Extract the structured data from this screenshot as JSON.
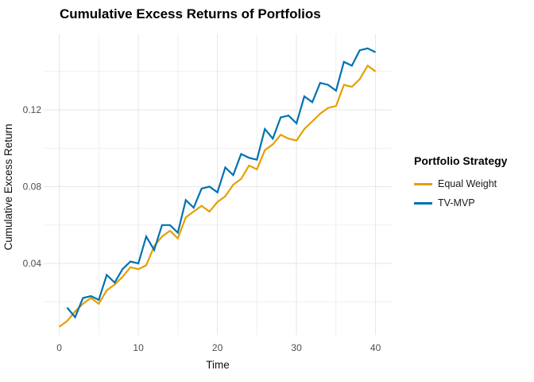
{
  "title": "Cumulative Excess Returns of Portfolios",
  "legend": {
    "title": "Portfolio Strategy",
    "entries": [
      {
        "label": "Equal Weight",
        "color": "#E69F00"
      },
      {
        "label": "TV-MVP",
        "color": "#0072B2"
      }
    ]
  },
  "colors": {
    "grid_major": "#e6e6e6",
    "grid_minor": "#efefef",
    "tick_label": "#4d4d4d",
    "background": "#ffffff"
  },
  "chart_data": {
    "type": "line",
    "title": "Cumulative Excess Returns of Portfolios",
    "xlabel": "Time",
    "ylabel": "Cumulative Excess Return",
    "xlim": [
      -2,
      42
    ],
    "ylim": [
      0,
      0.16
    ],
    "grid": true,
    "legend_position": "right",
    "x_ticks": [
      {
        "v": 0,
        "label": "0"
      },
      {
        "v": 10,
        "label": "10"
      },
      {
        "v": 20,
        "label": "20"
      },
      {
        "v": 30,
        "label": "30"
      },
      {
        "v": 40,
        "label": "40"
      }
    ],
    "y_ticks": [
      {
        "v": 0.04,
        "label": "0.04"
      },
      {
        "v": 0.08,
        "label": "0.08"
      },
      {
        "v": 0.12,
        "label": "0.12"
      }
    ],
    "x_gridlines_major": [
      0,
      10,
      20,
      30,
      40
    ],
    "x_gridlines_minor": [
      5,
      15,
      25,
      35
    ],
    "y_gridlines_major": [
      0.04,
      0.08,
      0.12
    ],
    "y_gridlines_minor": [
      0.02,
      0.06,
      0.1,
      0.14
    ],
    "series": [
      {
        "name": "Equal Weight",
        "color": "#E69F00",
        "x": [
          0,
          1,
          2,
          3,
          4,
          5,
          6,
          7,
          8,
          9,
          10,
          11,
          12,
          13,
          14,
          15,
          16,
          17,
          18,
          19,
          20,
          21,
          22,
          23,
          24,
          25,
          26,
          27,
          28,
          29,
          30,
          31,
          32,
          33,
          34,
          35,
          36,
          37,
          38,
          39,
          40
        ],
        "values": [
          0.007,
          0.01,
          0.015,
          0.019,
          0.022,
          0.019,
          0.026,
          0.029,
          0.033,
          0.038,
          0.037,
          0.039,
          0.049,
          0.054,
          0.057,
          0.053,
          0.064,
          0.067,
          0.07,
          0.067,
          0.072,
          0.075,
          0.081,
          0.084,
          0.091,
          0.089,
          0.099,
          0.102,
          0.107,
          0.105,
          0.104,
          0.11,
          0.114,
          0.118,
          0.121,
          0.122,
          0.133,
          0.132,
          0.136,
          0.143,
          0.14
        ]
      },
      {
        "name": "TV-MVP",
        "color": "#0072B2",
        "x": [
          1,
          2,
          3,
          4,
          5,
          6,
          7,
          8,
          9,
          10,
          11,
          12,
          13,
          14,
          15,
          16,
          17,
          18,
          19,
          20,
          21,
          22,
          23,
          24,
          25,
          26,
          27,
          28,
          29,
          30,
          31,
          32,
          33,
          34,
          35,
          36,
          37,
          38,
          39,
          40
        ],
        "values": [
          0.017,
          0.012,
          0.022,
          0.023,
          0.021,
          0.034,
          0.03,
          0.037,
          0.041,
          0.04,
          0.054,
          0.047,
          0.06,
          0.06,
          0.056,
          0.073,
          0.069,
          0.079,
          0.08,
          0.077,
          0.09,
          0.086,
          0.097,
          0.095,
          0.094,
          0.11,
          0.105,
          0.116,
          0.117,
          0.113,
          0.127,
          0.124,
          0.134,
          0.133,
          0.13,
          0.145,
          0.143,
          0.151,
          0.152,
          0.15
        ]
      }
    ]
  }
}
